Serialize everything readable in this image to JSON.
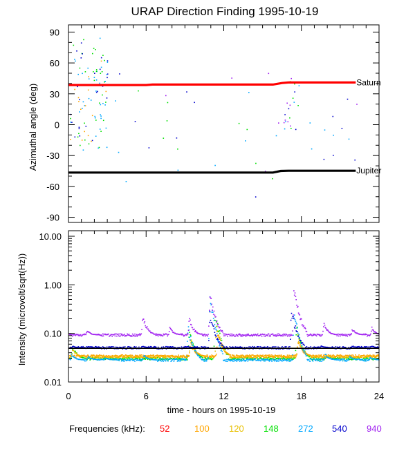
{
  "chart_data": [
    {
      "type": "scatter",
      "title": "URAP Direction Finding  1995-10-19",
      "ylabel": "Azimuthal angle (deg)",
      "ylim": [
        -95,
        97
      ],
      "yticks": [
        "90",
        "60",
        "30",
        "0",
        "-30",
        "-60",
        "-90"
      ],
      "ytick_values": [
        90,
        60,
        30,
        0,
        -30,
        -60,
        -90
      ],
      "xlim": [
        0,
        24
      ],
      "series": [
        {
          "name": "Saturn",
          "color": "#ff0000",
          "x": [
            0,
            2,
            4,
            6,
            6.5,
            8,
            10,
            12,
            14,
            15.8,
            16.5,
            17,
            18,
            20,
            22.2
          ],
          "y": [
            38.5,
            38.5,
            38.5,
            38.5,
            39,
            39,
            39,
            39,
            39,
            39,
            40.5,
            41,
            41,
            41,
            41
          ]
        },
        {
          "name": "Jupiter",
          "color": "#000000",
          "x": [
            0,
            2,
            4,
            6,
            8,
            10,
            12,
            14,
            15.8,
            16.4,
            17,
            18,
            20,
            22.2
          ],
          "y": [
            -46.5,
            -46.5,
            -46.5,
            -46.5,
            -46.5,
            -46.5,
            -46.5,
            -46.5,
            -46.5,
            -45,
            -44.8,
            -44.8,
            -44.8,
            -44.8
          ]
        }
      ],
      "labels": [
        "Saturn",
        "Jupiter"
      ]
    },
    {
      "type": "scatter",
      "ylabel": "Intensity (microvolt/sqrt(Hz))",
      "yscale": "log",
      "ylim": [
        0.01,
        13
      ],
      "yticks": [
        "10.00",
        "1.00",
        "0.10",
        "0.01"
      ],
      "ytick_values": [
        10,
        1,
        0.1,
        0.01
      ],
      "xlabel": "time - hours on 1995-10-19",
      "xlim": [
        0,
        24
      ],
      "xticks": [
        "0",
        "6",
        "12",
        "18",
        "24"
      ],
      "xtick_values": [
        0,
        6,
        12,
        18,
        24
      ],
      "series": [
        {
          "name": "940",
          "color": "#a020f0",
          "baseline": 0.095,
          "bursts": [
            [
              1.4,
              0.12
            ],
            [
              5.7,
              0.25
            ],
            [
              7.8,
              0.14
            ],
            [
              9.3,
              0.22
            ],
            [
              10.9,
              0.75
            ],
            [
              17.4,
              0.9
            ],
            [
              19.7,
              0.17
            ],
            [
              21.9,
              0.13
            ],
            [
              23.4,
              0.14
            ]
          ]
        },
        {
          "name": "540",
          "color": "#0000cd",
          "baseline": 0.052,
          "bursts": [
            [
              0.3,
              0.056
            ],
            [
              1.5,
              0.055
            ],
            [
              5.7,
              0.056
            ],
            [
              9.1,
              0.056
            ],
            [
              10.9,
              0.3
            ],
            [
              17.2,
              0.35
            ],
            [
              19.5,
              0.057
            ],
            [
              21.9,
              0.057
            ],
            [
              23.4,
              0.057
            ]
          ]
        },
        {
          "name": "272",
          "color": "#00a8ff",
          "baseline": 0.029,
          "bursts": [
            [
              0.2,
              0.038
            ],
            [
              1.5,
              0.036
            ],
            [
              2.8,
              0.033
            ],
            [
              5.8,
              0.038
            ],
            [
              9.2,
              0.16
            ],
            [
              10.9,
              0.6
            ],
            [
              17.4,
              0.3
            ],
            [
              19.8,
              0.04
            ],
            [
              21.7,
              0.035
            ],
            [
              23.3,
              0.034
            ]
          ]
        },
        {
          "name": "148",
          "color": "#00e000",
          "baseline": 0.031,
          "bursts": [
            [
              0.3,
              0.06
            ],
            [
              9.3,
              0.13
            ],
            [
              11.3,
              0.3
            ],
            [
              17.6,
              0.16
            ],
            [
              19.9,
              0.035
            ]
          ]
        },
        {
          "name": "120",
          "color": "#e8c000",
          "baseline": 0.034,
          "bursts": [
            [
              0.3,
              0.05
            ],
            [
              9.4,
              0.09
            ],
            [
              11.4,
              0.18
            ],
            [
              17.7,
              0.1
            ]
          ]
        },
        {
          "name": "100",
          "color": "#ffa500",
          "baseline": 0.035,
          "bursts": [
            [
              9.4,
              0.07
            ],
            [
              11.5,
              0.12
            ],
            [
              17.7,
              0.08
            ]
          ]
        },
        {
          "name": "52",
          "color": "#ff0000",
          "baseline": 0.045,
          "bursts": []
        }
      ]
    }
  ],
  "legend": {
    "label": "Frequencies (kHz):",
    "items": [
      {
        "text": "52",
        "color": "#ff0000"
      },
      {
        "text": "100",
        "color": "#ffa500"
      },
      {
        "text": "120",
        "color": "#e8c000"
      },
      {
        "text": "148",
        "color": "#00e000"
      },
      {
        "text": "272",
        "color": "#00a8ff"
      },
      {
        "text": "540",
        "color": "#0000cd"
      },
      {
        "text": "940",
        "color": "#a020f0"
      }
    ]
  }
}
